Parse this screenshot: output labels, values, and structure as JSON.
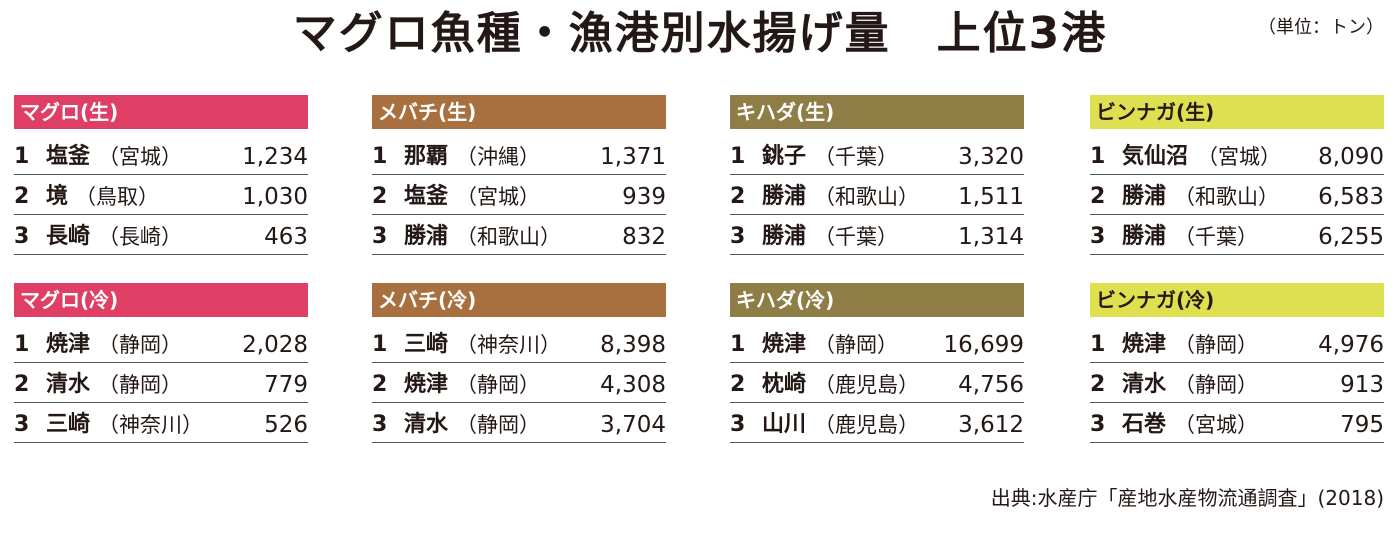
{
  "title": "マグロ魚種・漁港別水揚げ量　上位3港",
  "unit": "（単位：トン）",
  "source": "出典:水産庁「産地水産物流通調査」(2018)",
  "colors": {
    "maguro": "#df3f64",
    "mebachi": "#a8703e",
    "kihada": "#8e7d45",
    "binnaga": "#dfe04f"
  },
  "panels": [
    {
      "header": "マグロ(生)",
      "color_key": "maguro",
      "header_text_color": "#ffffff",
      "rows": [
        {
          "rank": "1",
          "port": "塩釜",
          "pref": "（宮城）",
          "value": "1,234"
        },
        {
          "rank": "2",
          "port": "境",
          "pref": "（鳥取）",
          "value": "1,030"
        },
        {
          "rank": "3",
          "port": "長崎",
          "pref": "（長崎）",
          "value": "463"
        }
      ]
    },
    {
      "header": "メバチ(生)",
      "color_key": "mebachi",
      "header_text_color": "#ffffff",
      "rows": [
        {
          "rank": "1",
          "port": "那覇",
          "pref": "（沖縄）",
          "value": "1,371"
        },
        {
          "rank": "2",
          "port": "塩釜",
          "pref": "（宮城）",
          "value": "939"
        },
        {
          "rank": "3",
          "port": "勝浦",
          "pref": "（和歌山）",
          "value": "832"
        }
      ]
    },
    {
      "header": "キハダ(生)",
      "color_key": "kihada",
      "header_text_color": "#ffffff",
      "rows": [
        {
          "rank": "1",
          "port": "銚子",
          "pref": "（千葉）",
          "value": "3,320"
        },
        {
          "rank": "2",
          "port": "勝浦",
          "pref": "（和歌山）",
          "value": "1,511"
        },
        {
          "rank": "3",
          "port": "勝浦",
          "pref": "（千葉）",
          "value": "1,314"
        }
      ]
    },
    {
      "header": "ビンナガ(生)",
      "color_key": "binnaga",
      "header_text_color": "#231815",
      "rows": [
        {
          "rank": "1",
          "port": "気仙沼",
          "pref": "（宮城）",
          "value": "8,090"
        },
        {
          "rank": "2",
          "port": "勝浦",
          "pref": "（和歌山）",
          "value": "6,583"
        },
        {
          "rank": "3",
          "port": "勝浦",
          "pref": "（千葉）",
          "value": "6,255"
        }
      ]
    },
    {
      "header": "マグロ(冷)",
      "color_key": "maguro",
      "header_text_color": "#ffffff",
      "rows": [
        {
          "rank": "1",
          "port": "焼津",
          "pref": "（静岡）",
          "value": "2,028"
        },
        {
          "rank": "2",
          "port": "清水",
          "pref": "（静岡）",
          "value": "779"
        },
        {
          "rank": "3",
          "port": "三崎",
          "pref": "（神奈川）",
          "value": "526"
        }
      ]
    },
    {
      "header": "メバチ(冷)",
      "color_key": "mebachi",
      "header_text_color": "#ffffff",
      "rows": [
        {
          "rank": "1",
          "port": "三崎",
          "pref": "（神奈川）",
          "value": "8,398"
        },
        {
          "rank": "2",
          "port": "焼津",
          "pref": "（静岡）",
          "value": "4,308"
        },
        {
          "rank": "3",
          "port": "清水",
          "pref": "（静岡）",
          "value": "3,704"
        }
      ]
    },
    {
      "header": "キハダ(冷)",
      "color_key": "kihada",
      "header_text_color": "#ffffff",
      "rows": [
        {
          "rank": "1",
          "port": "焼津",
          "pref": "（静岡）",
          "value": "16,699"
        },
        {
          "rank": "2",
          "port": "枕崎",
          "pref": "（鹿児島）",
          "value": "4,756"
        },
        {
          "rank": "3",
          "port": "山川",
          "pref": "（鹿児島）",
          "value": "3,612"
        }
      ]
    },
    {
      "header": "ビンナガ(冷)",
      "color_key": "binnaga",
      "header_text_color": "#231815",
      "rows": [
        {
          "rank": "1",
          "port": "焼津",
          "pref": "（静岡）",
          "value": "4,976"
        },
        {
          "rank": "2",
          "port": "清水",
          "pref": "（静岡）",
          "value": "913"
        },
        {
          "rank": "3",
          "port": "石巻",
          "pref": "（宮城）",
          "value": "795"
        }
      ]
    }
  ]
}
